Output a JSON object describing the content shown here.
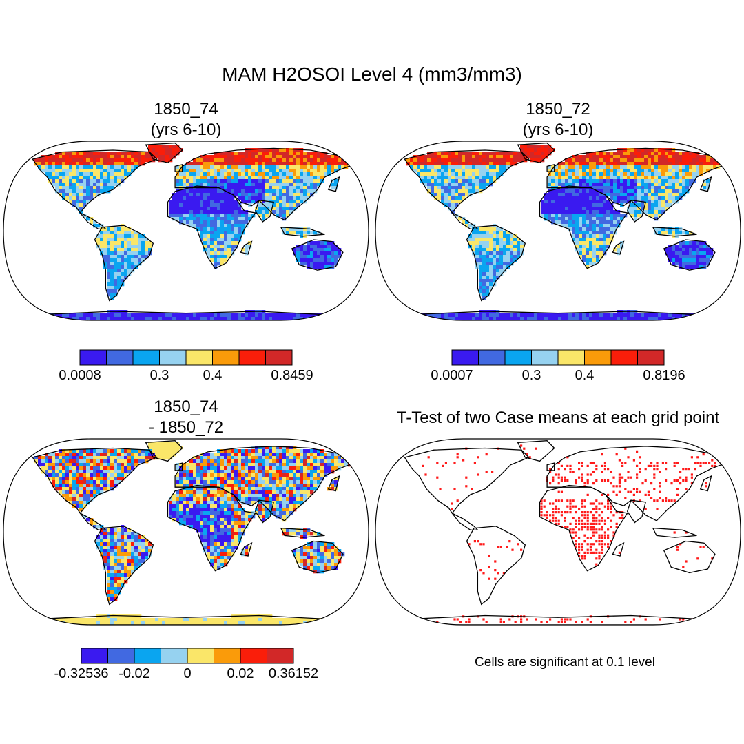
{
  "figure": {
    "title": "MAM H2OSOI Level 4 (mm3/mm3)"
  },
  "panels": [
    {
      "line1": "1850_74",
      "line2": "(yrs 6-10)"
    },
    {
      "line1": "1850_72",
      "line2": "(yrs 6-10)"
    },
    {
      "line1": "1850_74",
      "line2": "- 1850_72"
    },
    {
      "line1": "T-Test of two Case means at each grid point",
      "line2": ""
    }
  ],
  "colorbars": [
    {
      "colors": [
        "#3a1af0",
        "#4169e1",
        "#0aa5f0",
        "#96d2f0",
        "#fae669",
        "#fa9b0a",
        "#fa1e0a",
        "#d22828"
      ],
      "labels": [
        "0.0008",
        "0.3",
        "0.4",
        "0.8459"
      ]
    },
    {
      "colors": [
        "#3a1af0",
        "#4169e1",
        "#0aa5f0",
        "#96d2f0",
        "#fae669",
        "#fa9b0a",
        "#fa1e0a",
        "#d22828"
      ],
      "labels": [
        "0.0007",
        "0.3",
        "0.4",
        "0.8196"
      ]
    },
    {
      "colors": [
        "#3a1af0",
        "#4169e1",
        "#0aa5f0",
        "#96d2f0",
        "#fae669",
        "#fa9b0a",
        "#fa1e0a",
        "#d22828"
      ],
      "labels": [
        "-0.32536",
        "-0.02",
        "0",
        "0.02",
        "0.36152"
      ]
    }
  ],
  "ttest_note": "Cells are significant at 0.1 level"
}
